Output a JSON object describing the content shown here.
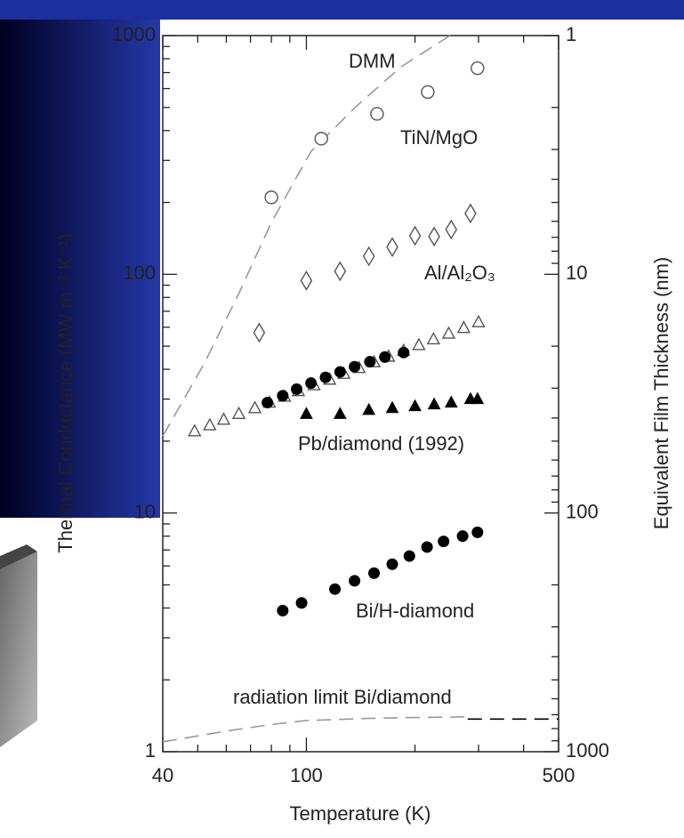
{
  "chart_data": {
    "type": "scatter",
    "xlabel": "Temperature (K)",
    "ylabel": "Thermal Conductance (MW m⁻² K⁻¹)",
    "y2label": "Equivalent Film Thickness (nm)",
    "xscale": "log",
    "yscale": "log",
    "y2scale": "log",
    "xlim": [
      40,
      500
    ],
    "xticks": [
      40,
      100,
      500
    ],
    "xminorticks": [
      50,
      60,
      70,
      80,
      90,
      200,
      300,
      400
    ],
    "ylim": [
      1,
      1000
    ],
    "yticks": [
      1,
      10,
      100,
      1000
    ],
    "yminorticks": [
      2,
      3,
      4,
      5,
      6,
      7,
      8,
      9,
      20,
      30,
      40,
      50,
      60,
      70,
      80,
      90,
      200,
      300,
      400,
      500,
      600,
      700,
      800,
      900
    ],
    "y2lim": [
      1000,
      1
    ],
    "y2ticks": [
      1000,
      100,
      10,
      1
    ],
    "y2minorticks": [
      2,
      3,
      4,
      5,
      6,
      7,
      8,
      9,
      20,
      30,
      40,
      50,
      60,
      70,
      80,
      90,
      200,
      300,
      400,
      500,
      600,
      700,
      800,
      900
    ],
    "annotations": [
      "DMM",
      "TiN/MgO",
      "Al/Al₂O₃",
      "Pb/diamond (1992)",
      "Bi/H-diamond",
      "radiation limit Bi/diamond"
    ],
    "series": [
      {
        "mode": "line",
        "color": "#999999",
        "dash": "long",
        "x": [
          40,
          52,
          65,
          80,
          103,
          137,
          183,
          250
        ],
        "values": [
          21,
          42,
          83,
          165,
          327,
          503,
          740,
          1000
        ]
      },
      {
        "mode": "markers",
        "marker": "circle-open",
        "color": "#555555",
        "x": [
          80,
          110,
          157,
          217,
          298
        ],
        "values": [
          210,
          370,
          470,
          580,
          730
        ]
      },
      {
        "mode": "markers",
        "marker": "diamond-open",
        "color": "#555555",
        "x": [
          74,
          100,
          124,
          149,
          173,
          200,
          226,
          252,
          285
        ],
        "values": [
          57,
          94,
          103,
          119,
          130,
          145,
          144,
          154,
          180
        ]
      },
      {
        "mode": "markers",
        "marker": "triangle-open",
        "color": "#555555",
        "x": [
          49,
          54,
          59,
          65,
          72,
          79,
          87,
          95,
          105,
          116,
          127,
          140,
          154,
          169,
          186,
          205,
          225,
          248,
          273,
          300
        ],
        "values": [
          22,
          23.3,
          24.6,
          26,
          27.5,
          29,
          30.7,
          32.4,
          34.3,
          36.2,
          38.3,
          40.5,
          42.8,
          45.2,
          47.8,
          50.5,
          53.4,
          56.4,
          59.6,
          63
        ]
      },
      {
        "mode": "markers",
        "marker": "circle-filled",
        "color": "#000000",
        "x": [
          78,
          86,
          94,
          103,
          113,
          124,
          136,
          150,
          165,
          186
        ],
        "values": [
          29,
          31,
          33,
          35,
          37,
          39,
          41,
          43,
          45,
          47
        ]
      },
      {
        "mode": "markers",
        "marker": "triangle-filled",
        "color": "#000000",
        "x": [
          100,
          124,
          149,
          173,
          200,
          226,
          252,
          285,
          298
        ],
        "values": [
          26,
          26,
          27,
          27.5,
          28,
          28.5,
          29,
          30,
          30
        ]
      },
      {
        "mode": "markers",
        "marker": "circle-filled",
        "color": "#000000",
        "x": [
          86,
          97,
          120,
          136,
          154,
          173,
          193,
          216,
          240,
          271,
          298
        ],
        "values": [
          3.9,
          4.2,
          4.8,
          5.2,
          5.6,
          6.1,
          6.6,
          7.2,
          7.6,
          8.0,
          8.3
        ]
      },
      {
        "mode": "line",
        "color": "#999999",
        "dash": "long",
        "x": [
          40,
          60,
          80,
          100,
          150,
          200,
          280
        ],
        "values": [
          1.1,
          1.22,
          1.3,
          1.35,
          1.38,
          1.39,
          1.4
        ]
      },
      {
        "mode": "line",
        "color": "#000000",
        "dash": "long",
        "x": [
          280,
          500
        ],
        "values": [
          1.37,
          1.37
        ]
      }
    ]
  }
}
